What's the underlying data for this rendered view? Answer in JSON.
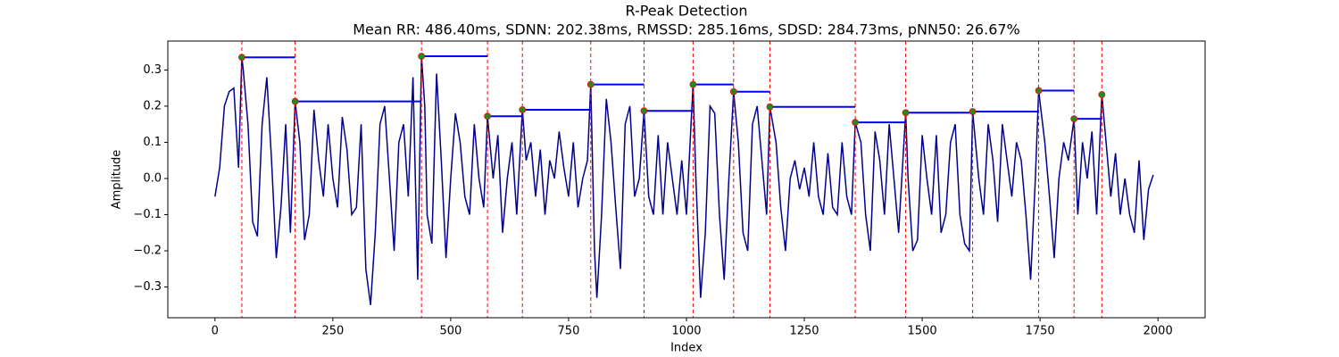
{
  "chart_data": {
    "type": "line",
    "title": "R-Peak Detection",
    "subtitle": "Mean RR: 486.40ms, SDNN: 202.38ms, RMSSD: 285.16ms, SDSD: 284.73ms, pNN50: 26.67%",
    "x_label": "Index",
    "y_label": "Amplitude",
    "xlim": [
      -100,
      2100
    ],
    "ylim": [
      -0.385,
      0.38
    ],
    "xticks": [
      0,
      250,
      500,
      750,
      1000,
      1250,
      1500,
      1750,
      2000
    ],
    "yticks": [
      {
        "value": -0.3,
        "label": "−0.3"
      },
      {
        "value": -0.2,
        "label": "−0.2"
      },
      {
        "value": -0.1,
        "label": "−0.1"
      },
      {
        "value": 0,
        "label": "0.0"
      },
      0.1,
      0.2,
      0.3
    ],
    "signal": {
      "color": "#00008b",
      "x": [
        0,
        10,
        20,
        30,
        40,
        50,
        57,
        60,
        70,
        80,
        90,
        100,
        110,
        120,
        130,
        140,
        150,
        160,
        170,
        180,
        190,
        200,
        210,
        220,
        230,
        240,
        250,
        260,
        270,
        280,
        290,
        300,
        310,
        320,
        330,
        340,
        350,
        360,
        370,
        380,
        390,
        400,
        410,
        420,
        430,
        438,
        445,
        450,
        460,
        470,
        480,
        490,
        500,
        510,
        520,
        530,
        540,
        550,
        560,
        570,
        578,
        590,
        600,
        610,
        620,
        630,
        640,
        652,
        660,
        670,
        680,
        690,
        700,
        710,
        720,
        730,
        740,
        750,
        760,
        770,
        780,
        790,
        797,
        805,
        810,
        820,
        830,
        840,
        850,
        860,
        870,
        880,
        890,
        900,
        910,
        920,
        930,
        940,
        950,
        960,
        970,
        980,
        990,
        1000,
        1014,
        1020,
        1030,
        1040,
        1050,
        1060,
        1070,
        1080,
        1090,
        1100,
        1110,
        1120,
        1130,
        1140,
        1150,
        1160,
        1170,
        1177,
        1190,
        1200,
        1210,
        1220,
        1230,
        1240,
        1250,
        1260,
        1270,
        1280,
        1290,
        1300,
        1310,
        1320,
        1330,
        1340,
        1350,
        1358,
        1370,
        1380,
        1390,
        1400,
        1410,
        1420,
        1430,
        1440,
        1450,
        1465,
        1470,
        1480,
        1490,
        1500,
        1510,
        1520,
        1530,
        1540,
        1550,
        1560,
        1570,
        1580,
        1590,
        1600,
        1607,
        1620,
        1630,
        1640,
        1650,
        1660,
        1670,
        1680,
        1690,
        1700,
        1710,
        1720,
        1730,
        1740,
        1747,
        1760,
        1770,
        1780,
        1790,
        1800,
        1810,
        1822,
        1830,
        1840,
        1850,
        1860,
        1870,
        1881,
        1890,
        1900,
        1910,
        1920,
        1930,
        1940,
        1950,
        1960,
        1970,
        1980,
        1990
      ],
      "values": [
        -0.05,
        0.03,
        0.2,
        0.24,
        0.25,
        0.03,
        0.335,
        0.3,
        0.15,
        -0.12,
        -0.16,
        0.15,
        0.28,
        0.05,
        -0.22,
        -0.08,
        0.15,
        -0.15,
        0.213,
        0.1,
        -0.17,
        -0.1,
        0.19,
        0.05,
        -0.05,
        0.15,
        0.0,
        -0.08,
        0.17,
        0.08,
        -0.1,
        -0.08,
        0.15,
        -0.25,
        -0.35,
        -0.15,
        0.15,
        0.2,
        0.0,
        -0.2,
        0.1,
        0.15,
        -0.05,
        0.28,
        -0.28,
        0.338,
        0.2,
        -0.1,
        -0.18,
        0.29,
        0.05,
        -0.22,
        0.0,
        0.18,
        0.1,
        -0.05,
        -0.1,
        0.15,
        0.0,
        -0.08,
        0.172,
        0.0,
        0.12,
        -0.15,
        0.0,
        0.1,
        -0.1,
        0.19,
        0.05,
        0.1,
        -0.05,
        0.08,
        -0.1,
        0.05,
        0.0,
        0.13,
        0.03,
        -0.05,
        0.1,
        -0.08,
        0.0,
        0.05,
        0.26,
        -0.2,
        -0.33,
        -0.1,
        0.22,
        0.1,
        -0.08,
        -0.25,
        0.15,
        0.2,
        -0.05,
        0.0,
        0.187,
        -0.05,
        -0.1,
        0.12,
        -0.1,
        0.1,
        0.0,
        -0.1,
        0.05,
        -0.1,
        0.26,
        0.0,
        -0.33,
        -0.15,
        0.2,
        0.18,
        -0.1,
        -0.28,
        0.0,
        0.24,
        0.1,
        -0.15,
        -0.2,
        0.15,
        0.2,
        0.05,
        -0.1,
        0.198,
        0.1,
        -0.08,
        -0.2,
        0.0,
        0.05,
        -0.03,
        0.03,
        -0.05,
        0.1,
        -0.05,
        -0.1,
        0.07,
        -0.08,
        -0.1,
        0.1,
        -0.05,
        -0.1,
        0.155,
        0.1,
        -0.1,
        -0.2,
        0.13,
        0.05,
        -0.1,
        0.15,
        0.0,
        -0.15,
        0.182,
        0.0,
        -0.2,
        -0.17,
        0.12,
        0.0,
        -0.1,
        0.12,
        -0.15,
        -0.1,
        0.1,
        0.15,
        -0.1,
        -0.18,
        -0.2,
        0.185,
        0.0,
        -0.1,
        0.15,
        0.05,
        -0.12,
        0.15,
        0.05,
        -0.05,
        0.1,
        0.05,
        -0.1,
        -0.28,
        0.0,
        0.243,
        0.1,
        -0.05,
        -0.22,
        0.0,
        0.1,
        0.05,
        0.165,
        -0.1,
        0.1,
        0.0,
        0.13,
        -0.1,
        0.232,
        0.1,
        -0.05,
        0.07,
        -0.1,
        0.0,
        -0.1,
        -0.15,
        0.05,
        -0.17,
        -0.03,
        0.01
      ]
    },
    "peaks": {
      "marker_color": "#228b22",
      "vline_color": "#ff0000",
      "interval_color": "#0000ff",
      "x": [
        57,
        170,
        438,
        578,
        652,
        797,
        910,
        1014,
        1100,
        1177,
        1358,
        1465,
        1607,
        1747,
        1822,
        1881
      ],
      "values": [
        0.335,
        0.213,
        0.338,
        0.172,
        0.19,
        0.26,
        0.187,
        0.26,
        0.24,
        0.198,
        0.155,
        0.182,
        0.185,
        0.243,
        0.165,
        0.232
      ]
    }
  }
}
